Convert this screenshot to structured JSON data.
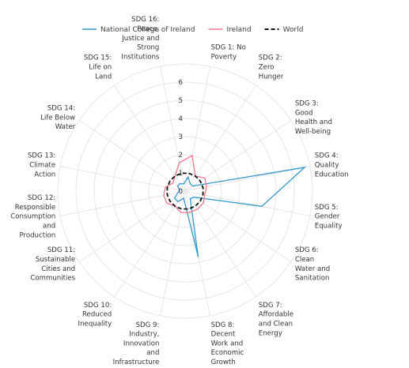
{
  "chart_data": {
    "type": "radar",
    "title": "",
    "categories": [
      "SDG 1: No Poverty",
      "SDG 2: Zero Hunger",
      "SDG 3: Good Health and Well-being",
      "SDG 4: Quality Education",
      "SDG 5: Gender Equality",
      "SDG 6: Clean Water and Sanitation",
      "SDG 7: Affordable and Clean Energy",
      "SDG 8: Decent Work and Economic Growth",
      "SDG 9: Industry, Innovation and Infrastructure",
      "SDG 10: Reduced Inequality",
      "SDG 11: Sustainable Cities and Communities",
      "SDG 12: Responsible Consumption and Production",
      "SDG 13: Climate Action",
      "SDG 14: Life Below Water",
      "SDG 15: Life on Land",
      "SDG 16: Peace, Justice and Strong Institutions"
    ],
    "category_lines": [
      [
        "SDG 1: No",
        "Poverty"
      ],
      [
        "SDG 2:",
        "Zero",
        "Hunger"
      ],
      [
        "SDG 3:",
        "Good",
        "Health and",
        "Well-being"
      ],
      [
        "SDG 4:",
        "Quality",
        "Education"
      ],
      [
        "SDG 5:",
        "Gender",
        "Equality"
      ],
      [
        "SDG 6:",
        "Clean",
        "Water and",
        "Sanitation"
      ],
      [
        "SDG 7:",
        "Affordable",
        "and Clean",
        "Energy"
      ],
      [
        "SDG 8:",
        "Decent",
        "Work and",
        "Economic",
        "Growth"
      ],
      [
        "SDG 9:",
        "Industry,",
        "Innovation",
        "and",
        "Infrastructure"
      ],
      [
        "SDG 10:",
        "Reduced",
        "Inequality"
      ],
      [
        "SDG 11:",
        "Sustainable",
        "Cities and",
        "Communities"
      ],
      [
        "SDG 12:",
        "Responsible",
        "Consumption",
        "and",
        "Production"
      ],
      [
        "SDG 13:",
        "Climate",
        "Action"
      ],
      [
        "SDG 14:",
        "Life Below",
        "Water"
      ],
      [
        "SDG 15:",
        "Life on",
        "Land"
      ],
      [
        "SDG 16:",
        "Peace,",
        "Justice and",
        "Strong",
        "Institutions"
      ]
    ],
    "rlim": [
      0,
      7
    ],
    "tick_values": [
      0,
      1,
      2,
      3,
      4,
      5,
      6
    ],
    "tick_labels": [
      "0",
      "1",
      "2",
      "3",
      "4",
      "5",
      "6"
    ],
    "grid": true,
    "legend_position": "top",
    "series": [
      {
        "name": "National College of Ireland",
        "color": "#3399cc",
        "dash": "solid",
        "values": [
          0.8,
          0.5,
          0.5,
          6.7,
          4.3,
          0.6,
          0.5,
          3.7,
          0.4,
          0.7,
          0.7,
          0.4,
          0.3,
          0.5,
          0.5,
          0.4
        ]
      },
      {
        "name": "Ireland",
        "color": "#f2788c",
        "dash": "solid",
        "values": [
          2.0,
          1.0,
          1.3,
          1.2,
          1.1,
          1.2,
          1.2,
          1.2,
          1.2,
          1.0,
          1.2,
          1.2,
          1.1,
          0.8,
          1.0,
          1.6
        ]
      },
      {
        "name": "World",
        "color": "#111111",
        "dash": "dashed",
        "values": [
          1.0,
          1.0,
          1.0,
          1.0,
          1.0,
          1.0,
          1.0,
          1.0,
          1.0,
          1.0,
          1.0,
          1.0,
          1.0,
          1.0,
          1.0,
          1.0
        ]
      }
    ]
  }
}
